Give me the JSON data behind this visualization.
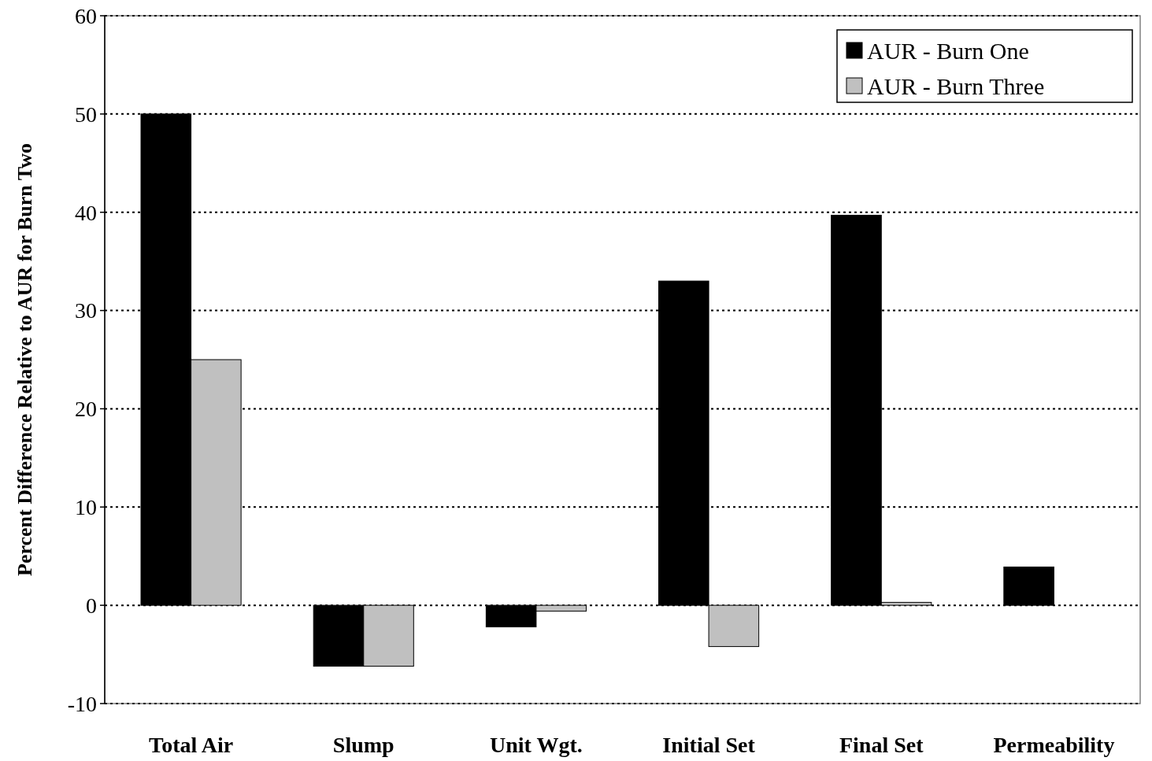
{
  "chart_data": {
    "type": "bar",
    "ylabel": "Percent Difference Relative to AUR for Burn Two",
    "categories": [
      "Total Air",
      "Slump",
      "Unit Wgt.",
      "Initial Set",
      "Final Set",
      "Permeability"
    ],
    "series": [
      {
        "name": "AUR - Burn One",
        "color": "#000000",
        "values": [
          50,
          -6.2,
          -2.2,
          33,
          39.7,
          3.9
        ]
      },
      {
        "name": "AUR - Burn Three",
        "color": "#c0c0c0",
        "values": [
          25,
          -6.2,
          -0.6,
          -4.2,
          0.3,
          null
        ]
      }
    ],
    "ylim": [
      -10,
      60
    ],
    "yticks": [
      -10,
      0,
      10,
      20,
      30,
      40,
      50,
      60
    ],
    "grid": "y",
    "legend": "top right"
  }
}
